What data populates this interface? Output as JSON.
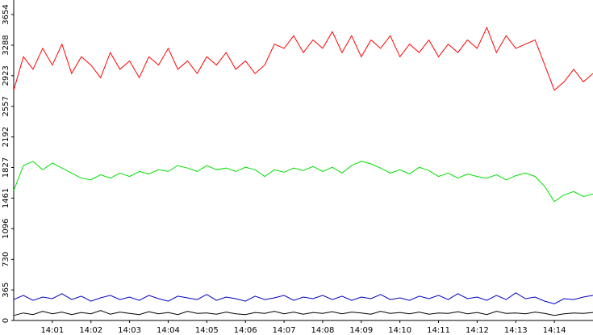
{
  "chart_data": {
    "type": "line",
    "x": [
      0,
      0.25,
      0.5,
      0.75,
      1,
      1.25,
      1.5,
      1.75,
      2,
      2.25,
      2.5,
      2.75,
      3,
      3.25,
      3.5,
      3.75,
      4,
      4.25,
      4.5,
      4.75,
      5,
      5.25,
      5.5,
      5.75,
      6,
      6.25,
      6.5,
      6.75,
      7,
      7.25,
      7.5,
      7.75,
      8,
      8.25,
      8.5,
      8.75,
      9,
      9.25,
      9.5,
      9.75,
      10,
      10.25,
      10.5,
      10.75,
      11,
      11.25,
      11.5,
      11.75,
      12,
      12.25,
      12.5,
      12.75,
      13,
      13.25,
      13.5,
      13.75,
      14,
      14.25,
      14.5,
      14.75,
      15
    ],
    "series": [
      {
        "name": "red",
        "color": "#ff0000",
        "values": [
          2750,
          3150,
          3000,
          3250,
          3050,
          3300,
          2950,
          3150,
          3050,
          2900,
          3200,
          3000,
          3100,
          2900,
          3150,
          3050,
          3250,
          3000,
          3100,
          2950,
          3150,
          3050,
          3200,
          3000,
          3100,
          2950,
          3050,
          3300,
          3250,
          3400,
          3200,
          3350,
          3250,
          3450,
          3200,
          3400,
          3150,
          3350,
          3250,
          3400,
          3150,
          3300,
          3200,
          3350,
          3150,
          3300,
          3200,
          3350,
          3250,
          3500,
          3200,
          3400,
          3250,
          3300,
          3350,
          3050,
          2750,
          2850,
          3000,
          2850,
          2950
        ]
      },
      {
        "name": "green",
        "color": "#00e000",
        "values": [
          1550,
          1850,
          1900,
          1800,
          1880,
          1820,
          1760,
          1700,
          1680,
          1740,
          1700,
          1760,
          1720,
          1780,
          1750,
          1800,
          1780,
          1850,
          1820,
          1780,
          1850,
          1800,
          1820,
          1780,
          1830,
          1800,
          1720,
          1800,
          1770,
          1820,
          1790,
          1840,
          1780,
          1830,
          1760,
          1850,
          1900,
          1870,
          1820,
          1760,
          1800,
          1750,
          1830,
          1790,
          1720,
          1760,
          1700,
          1750,
          1720,
          1700,
          1740,
          1680,
          1730,
          1760,
          1720,
          1600,
          1420,
          1500,
          1540,
          1480,
          1510
        ]
      },
      {
        "name": "blue",
        "color": "#0000c0",
        "values": [
          250,
          300,
          240,
          280,
          260,
          320,
          250,
          290,
          230,
          270,
          300,
          250,
          280,
          240,
          300,
          260,
          230,
          290,
          270,
          250,
          310,
          240,
          280,
          260,
          230,
          290,
          250,
          270,
          300,
          240,
          280,
          260,
          300,
          250,
          290,
          240,
          280,
          260,
          310,
          250,
          270,
          240,
          290,
          260,
          300,
          250,
          320,
          260,
          280,
          240,
          300,
          250,
          330,
          260,
          280,
          230,
          200,
          260,
          250,
          280,
          300
        ]
      },
      {
        "name": "black",
        "color": "#000000",
        "values": [
          60,
          90,
          70,
          110,
          80,
          100,
          70,
          95,
          80,
          120,
          75,
          100,
          85,
          70,
          105,
          80,
          95,
          70,
          110,
          85,
          90,
          75,
          100,
          80,
          70,
          95,
          85,
          110,
          80,
          100,
          75,
          95,
          85,
          105,
          80,
          100,
          90,
          75,
          110,
          85,
          95,
          80,
          100,
          75,
          90,
          85,
          105,
          80,
          95,
          70,
          110,
          85,
          90,
          80,
          100,
          85,
          60,
          80,
          90,
          85,
          95
        ]
      }
    ],
    "xlim": [
      0,
      15
    ],
    "xticks": [
      {
        "value": 1,
        "label": "14:01"
      },
      {
        "value": 2,
        "label": "14:02"
      },
      {
        "value": 3,
        "label": "14:03"
      },
      {
        "value": 4,
        "label": "14:04"
      },
      {
        "value": 5,
        "label": "14:05"
      },
      {
        "value": 6,
        "label": "14:06"
      },
      {
        "value": 7,
        "label": "14:07"
      },
      {
        "value": 8,
        "label": "14:08"
      },
      {
        "value": 9,
        "label": "14:09"
      },
      {
        "value": 10,
        "label": "14:10"
      },
      {
        "value": 11,
        "label": "14:11"
      },
      {
        "value": 12,
        "label": "14:12"
      },
      {
        "value": 13,
        "label": "14:13"
      },
      {
        "value": 14,
        "label": "14:14"
      }
    ],
    "ylim": [
      0,
      3654
    ],
    "yticks": [
      0,
      365,
      730,
      1096,
      1461,
      1827,
      2192,
      2557,
      2923,
      3288,
      3654
    ],
    "grid": false
  }
}
